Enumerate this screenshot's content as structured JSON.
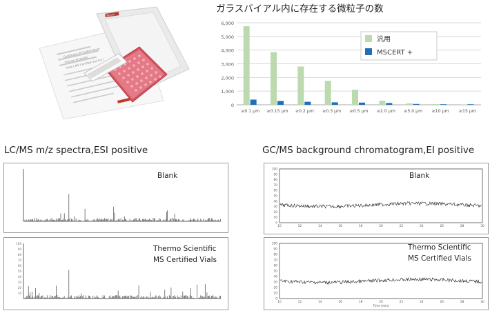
{
  "chart_data": [
    {
      "type": "bar",
      "title": "ガラスバイアル内に存在する微粒子の数",
      "categories": [
        "≥0.1 μm",
        "≥0.15 μm",
        "≥0.2 μm",
        "≥0.3 μm",
        "≥0.5 μm",
        "≥2.0 μm",
        "≥5.0 μm",
        "≥10 μm",
        "≥15 μm"
      ],
      "series": [
        {
          "name": "汎用",
          "color": "#bcd9b0",
          "values": [
            5750,
            3850,
            2800,
            1750,
            1100,
            300,
            100,
            50,
            30
          ]
        },
        {
          "name": "MSCERT +",
          "color": "#1f6fb8",
          "values": [
            380,
            280,
            220,
            180,
            160,
            130,
            60,
            40,
            40
          ]
        }
      ],
      "yticks": [
        "0",
        "1,000",
        "2,000",
        "3,000",
        "4,000",
        "5,000",
        "6,000"
      ],
      "ylim": [
        0,
        6000
      ],
      "grid": true,
      "legend_position": "top-right"
    },
    {
      "type": "line",
      "title": "LC/MS m/z spectra,ESI positive",
      "panels": [
        {
          "label": "Blank",
          "y_axis_ticks": [],
          "x_axis_ticks": []
        },
        {
          "label_lines": [
            "Thermo Scientific",
            "MS Certified Vials"
          ],
          "y_axis_ticks": [
            "100",
            "90",
            "80",
            "70",
            "60",
            "50",
            "40",
            "30",
            "20",
            "10"
          ],
          "x_axis_ticks": []
        }
      ]
    },
    {
      "type": "line",
      "title": "GC/MS background chromatogram,EI positive",
      "panels": [
        {
          "label": "Blank",
          "y_axis_ticks": [
            "100",
            "90",
            "80",
            "70",
            "60",
            "50",
            "40",
            "30",
            "20",
            "10",
            "0"
          ],
          "x_axis_ticks": [
            "10",
            "12",
            "14",
            "16",
            "18",
            "20",
            "22",
            "24",
            "26",
            "28",
            "30"
          ],
          "level_percent": 33
        },
        {
          "label_lines": [
            "Thermo Scientific",
            "MS Certified Vials"
          ],
          "y_axis_ticks": [
            "100",
            "90",
            "80",
            "70",
            "60",
            "50",
            "40",
            "30",
            "20",
            "10",
            "0"
          ],
          "x_axis_ticks": [
            "10",
            "12",
            "14",
            "16",
            "18",
            "20",
            "22",
            "24",
            "26",
            "28",
            "30"
          ],
          "xlabel": "Time (min)",
          "level_percent": 32
        }
      ]
    }
  ],
  "product": {
    "box_label": "Thermo",
    "sheet_lines": [
      "Certificate of Conformance",
      "Thermo Scientific",
      "Vials ( MS Certified Vial Kit )"
    ]
  }
}
